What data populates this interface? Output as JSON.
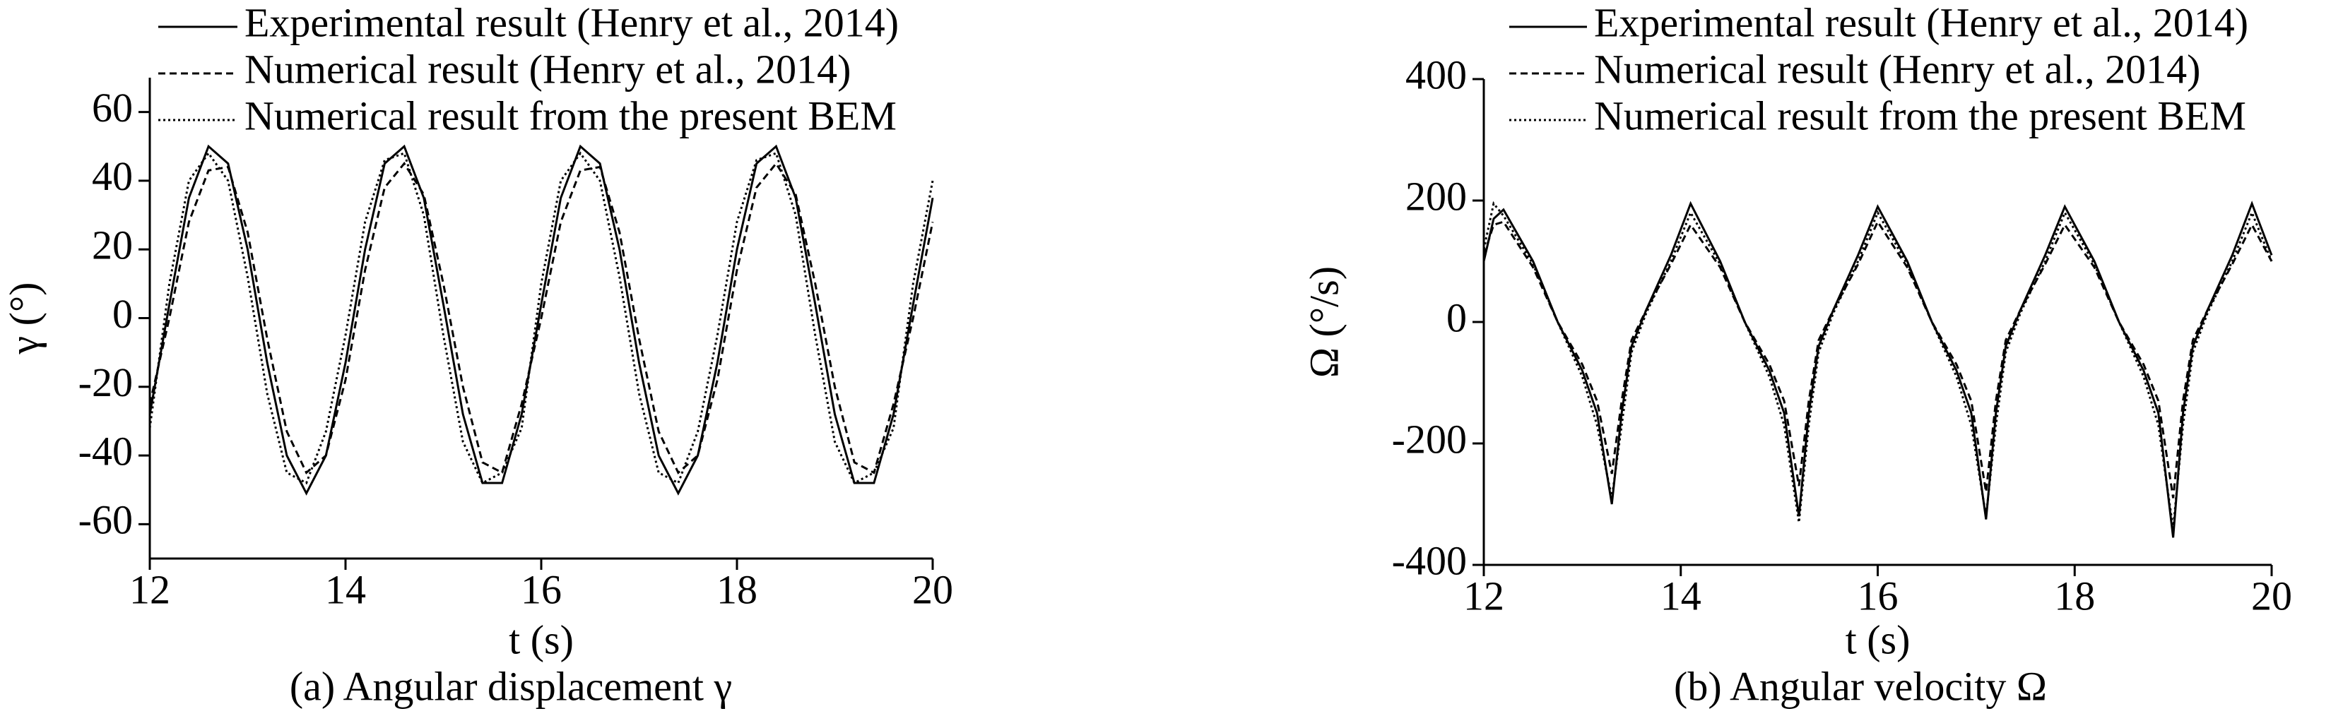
{
  "chart_data": [
    {
      "type": "line",
      "title": "(a) Angular displacement γ",
      "xlabel": "t (s)",
      "ylabel": "γ (°)",
      "xlim": [
        12,
        20
      ],
      "ylim": [
        -70,
        70
      ],
      "xticks": [
        12,
        14,
        16,
        18,
        20
      ],
      "yticks": [
        -60,
        -40,
        -20,
        0,
        20,
        40,
        60
      ],
      "x": [
        12,
        12.2,
        12.4,
        12.6,
        12.8,
        13,
        13.2,
        13.4,
        13.6,
        13.8,
        14,
        14.2,
        14.4,
        14.6,
        14.8,
        15,
        15.2,
        15.4,
        15.6,
        15.8,
        16,
        16.2,
        16.4,
        16.6,
        16.8,
        17,
        17.2,
        17.4,
        17.6,
        17.8,
        18,
        18.2,
        18.4,
        18.6,
        18.8,
        19,
        19.2,
        19.4,
        19.6,
        19.8,
        20
      ],
      "series": [
        {
          "name": "Experimental result (Henry et al., 2014)",
          "color": "#000000",
          "linestyle": "solid",
          "values": [
            -28,
            4,
            35,
            50,
            45,
            20,
            -13,
            -40,
            -51,
            -40,
            -13,
            20,
            45,
            50,
            35,
            4,
            -28,
            -48,
            -48,
            -28,
            4,
            35,
            50,
            45,
            20,
            -13,
            -40,
            -51,
            -40,
            -13,
            20,
            45,
            50,
            35,
            4,
            -28,
            -48,
            -48,
            -28,
            4,
            35
          ]
        },
        {
          "name": "Numerical result (Henry et al., 2014)",
          "color": "#000000",
          "linestyle": "dashed",
          "values": [
            -25,
            0,
            28,
            43,
            44,
            25,
            -6,
            -33,
            -45,
            -40,
            -18,
            14,
            38,
            45,
            36,
            10,
            -20,
            -42,
            -45,
            -25,
            0,
            28,
            43,
            44,
            25,
            -6,
            -33,
            -45,
            -40,
            -18,
            14,
            38,
            45,
            36,
            10,
            -20,
            -42,
            -45,
            -25,
            0,
            28
          ]
        },
        {
          "name": "Numerical result from the present BEM",
          "color": "#000000",
          "linestyle": "dotted",
          "values": [
            -32,
            10,
            40,
            48,
            40,
            12,
            -22,
            -45,
            -48,
            -33,
            -5,
            28,
            46,
            48,
            30,
            -5,
            -36,
            -48,
            -45,
            -32,
            10,
            40,
            48,
            40,
            12,
            -22,
            -45,
            -48,
            -33,
            -5,
            28,
            46,
            48,
            30,
            -5,
            -36,
            -48,
            -45,
            -32,
            10,
            40
          ]
        }
      ]
    },
    {
      "type": "line",
      "title": "(b) Angular velocity Ω",
      "xlabel": "t (s)",
      "ylabel": "Ω (°/s)",
      "xlim": [
        12,
        20
      ],
      "ylim": [
        -400,
        400
      ],
      "xticks": [
        12,
        14,
        16,
        18,
        20
      ],
      "yticks": [
        -400,
        -200,
        0,
        200,
        400
      ],
      "x": [
        12,
        12.1,
        12.2,
        12.5,
        12.75,
        13,
        13.15,
        13.3,
        13.4,
        13.5,
        13.65,
        13.9,
        14.1,
        14.4,
        14.65,
        14.9,
        15.05,
        15.2,
        15.3,
        15.4,
        15.55,
        15.8,
        16,
        16.3,
        16.55,
        16.8,
        16.95,
        17.1,
        17.2,
        17.3,
        17.45,
        17.7,
        17.9,
        18.2,
        18.45,
        18.7,
        18.85,
        19,
        19.1,
        19.2,
        19.35,
        19.6,
        19.8,
        20
      ],
      "series": [
        {
          "name": "Experimental result (Henry et al., 2014)",
          "color": "#000000",
          "linestyle": "solid",
          "values": [
            100,
            170,
            185,
            100,
            0,
            -80,
            -150,
            -300,
            -150,
            -40,
            20,
            110,
            195,
            100,
            0,
            -80,
            -150,
            -320,
            -150,
            -40,
            20,
            110,
            190,
            100,
            0,
            -80,
            -150,
            -325,
            -150,
            -40,
            20,
            110,
            190,
            100,
            0,
            -80,
            -150,
            -355,
            -150,
            -40,
            20,
            110,
            195,
            110
          ]
        },
        {
          "name": "Numerical result (Henry et al., 2014)",
          "color": "#000000",
          "linestyle": "dashed",
          "values": [
            110,
            160,
            165,
            90,
            0,
            -70,
            -130,
            -250,
            -130,
            -30,
            20,
            95,
            160,
            90,
            0,
            -70,
            -130,
            -270,
            -130,
            -30,
            20,
            95,
            165,
            90,
            0,
            -70,
            -130,
            -280,
            -130,
            -30,
            20,
            95,
            160,
            90,
            0,
            -70,
            -130,
            -290,
            -130,
            -30,
            20,
            95,
            160,
            100
          ]
        },
        {
          "name": "Numerical result from the present BEM",
          "color": "#000000",
          "linestyle": "dotted",
          "values": [
            120,
            195,
            175,
            95,
            0,
            -90,
            -170,
            -290,
            -170,
            -50,
            15,
            100,
            180,
            95,
            0,
            -90,
            -170,
            -330,
            -170,
            -50,
            15,
            100,
            180,
            95,
            0,
            -90,
            -170,
            -320,
            -170,
            -50,
            15,
            100,
            180,
            95,
            0,
            -90,
            -170,
            -340,
            -170,
            -50,
            15,
            100,
            180,
            100
          ]
        }
      ]
    }
  ]
}
